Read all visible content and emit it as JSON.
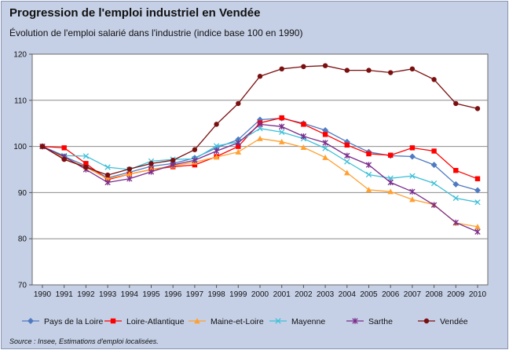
{
  "title": "Progression de l'emploi industriel en Vendée",
  "subtitle": "Évolution de l'emploi salarié dans l'industrie (indice base 100 en 1990)",
  "source": "Source : Insee, Estimations d'emploi localisées.",
  "chart_data": {
    "type": "line",
    "x": [
      "1990",
      "1991",
      "1992",
      "1993",
      "1994",
      "1995",
      "1996",
      "1997",
      "1998",
      "1999",
      "2000",
      "2001",
      "2002",
      "2003",
      "2004",
      "2005",
      "2006",
      "2007",
      "2008",
      "2009",
      "2010"
    ],
    "ylim": [
      70,
      120
    ],
    "yticks": [
      70,
      80,
      90,
      100,
      110,
      120
    ],
    "grid": true,
    "legend_position": "bottom",
    "series": [
      {
        "name": "Pays de la Loire",
        "color": "#4f7ac2",
        "marker": "diamond",
        "values": [
          100,
          97.8,
          95.8,
          93.2,
          94.4,
          95.7,
          96.3,
          97.5,
          99.7,
          101.5,
          105.8,
          106.1,
          105.0,
          103.5,
          101.0,
          98.8,
          98.0,
          97.8,
          96.0,
          91.8,
          90.5
        ]
      },
      {
        "name": "Loire-Atlantique",
        "color": "#ff0000",
        "marker": "square",
        "values": [
          100,
          99.7,
          96.3,
          92.8,
          94.0,
          95.0,
          95.6,
          96.0,
          97.8,
          100.0,
          105.1,
          106.2,
          104.8,
          102.6,
          100.3,
          98.4,
          98.1,
          99.7,
          99.0,
          94.8,
          93.0
        ]
      },
      {
        "name": "Maine-et-Loire",
        "color": "#ffa030",
        "marker": "triangle",
        "values": [
          100,
          97.5,
          95.5,
          93.0,
          94.0,
          95.0,
          95.8,
          96.6,
          97.7,
          98.8,
          101.7,
          101.0,
          99.8,
          97.6,
          94.3,
          90.6,
          90.2,
          88.5,
          87.4,
          83.4,
          82.6
        ]
      },
      {
        "name": "Mayenne",
        "color": "#3fc0d8",
        "marker": "x",
        "values": [
          100,
          98.0,
          97.9,
          95.5,
          95.0,
          96.8,
          97.2,
          97.3,
          100.1,
          101.0,
          103.9,
          103.1,
          101.7,
          99.6,
          96.7,
          93.9,
          93.1,
          93.6,
          92.0,
          88.8,
          87.9
        ]
      },
      {
        "name": "Sarthe",
        "color": "#7a2d8c",
        "marker": "star",
        "values": [
          100,
          97.8,
          95.0,
          92.2,
          93.0,
          94.5,
          96.0,
          97.0,
          99.0,
          100.8,
          104.8,
          104.3,
          102.2,
          100.8,
          98.0,
          96.0,
          92.2,
          90.2,
          87.3,
          83.5,
          81.5
        ]
      },
      {
        "name": "Vendée",
        "color": "#7a0f0f",
        "marker": "circle",
        "values": [
          100,
          97.2,
          95.5,
          93.8,
          95.1,
          96.3,
          97.0,
          99.3,
          104.8,
          109.3,
          115.2,
          116.8,
          117.3,
          117.5,
          116.5,
          116.5,
          116.0,
          116.8,
          114.5,
          109.3,
          108.2
        ]
      }
    ]
  }
}
